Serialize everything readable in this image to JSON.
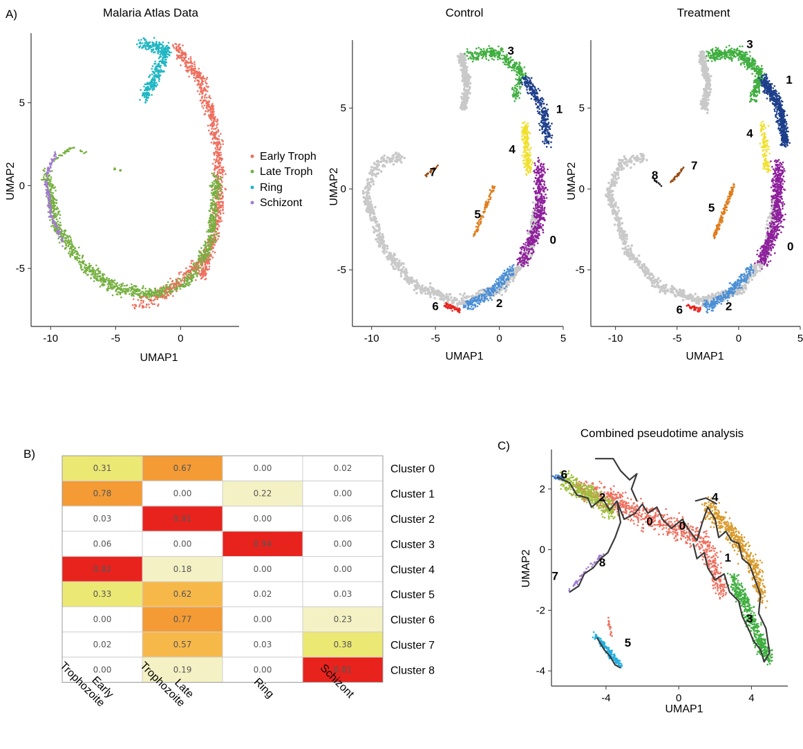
{
  "panel_labels": {
    "a": "A)",
    "b": "B)",
    "c": "C)"
  },
  "chart_data": [
    {
      "id": "atlas",
      "type": "scatter",
      "title": "Malaria Atlas Data",
      "xlabel": "UMAP1",
      "ylabel": "UMAP2",
      "xlim": [
        -11.5,
        4.5
      ],
      "ylim": [
        -8.5,
        9.2
      ],
      "xticks": [
        -10,
        -5,
        0
      ],
      "yticks": [
        -5,
        0,
        5
      ],
      "legend_position": "right",
      "series": [
        {
          "name": "Early Troph",
          "color": "#ef6f5e"
        },
        {
          "name": "Late Troph",
          "color": "#76b041"
        },
        {
          "name": "Ring",
          "color": "#1fb6c2"
        },
        {
          "name": "Schizont",
          "color": "#a27bd0"
        }
      ]
    },
    {
      "id": "control",
      "type": "scatter",
      "title": "Control",
      "xlabel": "UMAP1",
      "ylabel": "UMAP2",
      "xlim": [
        -11.5,
        5
      ],
      "ylim": [
        -8.5,
        9.2
      ],
      "xticks": [
        -10,
        -5,
        0,
        5
      ],
      "yticks": [
        -5,
        0,
        5
      ],
      "background_color": "#c9c9c9",
      "cluster_labels": [
        {
          "label": "0",
          "x": 4.2,
          "y": -3.4,
          "color": "#8e1f9c"
        },
        {
          "label": "1",
          "x": 4.7,
          "y": 4.7,
          "color": "#1d3e8a"
        },
        {
          "label": "2",
          "x": -0.0,
          "y": -7.3,
          "color": "#4a8fd6"
        },
        {
          "label": "3",
          "x": 0.9,
          "y": 8.3,
          "color": "#3fae3f"
        },
        {
          "label": "4",
          "x": 1.0,
          "y": 2.2,
          "color": "#f0e02c"
        },
        {
          "label": "5",
          "x": -1.7,
          "y": -1.8,
          "color": "#e07d1c"
        },
        {
          "label": "6",
          "x": -5.0,
          "y": -7.5,
          "color": "#e8231d"
        },
        {
          "label": "7",
          "x": -5.2,
          "y": 0.8,
          "color": "#9a4e16"
        }
      ]
    },
    {
      "id": "treatment",
      "type": "scatter",
      "title": "Treatment",
      "xlabel": "UMAP1",
      "ylabel": "UMAP2",
      "xlim": [
        -12,
        5
      ],
      "ylim": [
        -8.5,
        9.2
      ],
      "xticks": [
        -10,
        -5,
        0,
        5
      ],
      "yticks": [
        -5,
        0,
        5
      ],
      "background_color": "#c9c9c9",
      "cluster_labels": [
        {
          "label": "0",
          "x": 4.2,
          "y": -3.8,
          "color": "#8e1f9c"
        },
        {
          "label": "1",
          "x": 4.1,
          "y": 6.5,
          "color": "#1d3e8a"
        },
        {
          "label": "2",
          "x": -0.8,
          "y": -7.5,
          "color": "#4a8fd6"
        },
        {
          "label": "3",
          "x": 0.9,
          "y": 8.7,
          "color": "#3fae3f"
        },
        {
          "label": "4",
          "x": 0.9,
          "y": 3.2,
          "color": "#f0e02c"
        },
        {
          "label": "5",
          "x": -2.2,
          "y": -1.4,
          "color": "#e07d1c"
        },
        {
          "label": "6",
          "x": -4.8,
          "y": -7.7,
          "color": "#e8231d"
        },
        {
          "label": "7",
          "x": -3.6,
          "y": 1.2,
          "color": "#9a4e16"
        },
        {
          "label": "8",
          "x": -6.8,
          "y": 0.6,
          "color": "#111111"
        }
      ]
    },
    {
      "id": "cluster_heatmap",
      "type": "heatmap",
      "rows": [
        "Cluster 0",
        "Cluster 1",
        "Cluster 2",
        "Cluster 3",
        "Cluster 4",
        "Cluster 5",
        "Cluster 6",
        "Cluster 7",
        "Cluster 8"
      ],
      "columns": [
        "Early\nTrophozoite",
        "Late\nTrophozoite",
        "Ring",
        "Schizont"
      ],
      "values": [
        [
          0.31,
          0.67,
          0.0,
          0.02
        ],
        [
          0.78,
          0.0,
          0.22,
          0.0
        ],
        [
          0.03,
          0.91,
          0.0,
          0.06
        ],
        [
          0.06,
          0.0,
          0.94,
          0.0
        ],
        [
          0.82,
          0.18,
          0.0,
          0.0
        ],
        [
          0.33,
          0.62,
          0.02,
          0.03
        ],
        [
          0.0,
          0.77,
          0.0,
          0.23
        ],
        [
          0.02,
          0.57,
          0.03,
          0.38
        ],
        [
          0.0,
          0.19,
          0.0,
          0.81
        ]
      ],
      "value_labels": [
        [
          "0.31",
          "0.67",
          "0.00",
          "0.02"
        ],
        [
          "0.78",
          "0.00",
          "0.22",
          "0.00"
        ],
        [
          "0.03",
          "0.91",
          "0.00",
          "0.06"
        ],
        [
          "0.06",
          "0.00",
          "0.94",
          "0.00"
        ],
        [
          "0.82",
          "0.18",
          "0.00",
          "0.00"
        ],
        [
          "0.33",
          "0.62",
          "0.02",
          "0.03"
        ],
        [
          "0.00",
          "0.77",
          "0.00",
          "0.23"
        ],
        [
          "0.02",
          "0.57",
          "0.03",
          "0.38"
        ],
        [
          "0.00",
          "0.19",
          "0.00",
          "0.81"
        ]
      ],
      "color_scale": {
        "low": "#ffffff",
        "light": "#f4f2c4",
        "mid": "#ece874",
        "orange_light": "#f7b84a",
        "orange": "#f49b35",
        "high": "#e8231d"
      }
    },
    {
      "id": "pseudotime",
      "type": "scatter",
      "title": "Combined pseudotime analysis",
      "xlabel": "UMAP1",
      "ylabel": "UMAP2",
      "xlim": [
        -7,
        6
      ],
      "ylim": [
        -4.5,
        3.3
      ],
      "xticks": [
        -4,
        0,
        4
      ],
      "yticks": [
        -4,
        -2,
        0,
        2
      ],
      "trajectory_color": "#3a3a3a",
      "cluster_labels": [
        {
          "label": "6",
          "x": -6.3,
          "y": 2.35
        },
        {
          "label": "2",
          "x": -4.2,
          "y": 1.6
        },
        {
          "label": "0",
          "x": -1.6,
          "y": 0.8
        },
        {
          "label": "0",
          "x": 0.2,
          "y": 0.65
        },
        {
          "label": "4",
          "x": 2.0,
          "y": 1.6
        },
        {
          "label": "1",
          "x": 2.7,
          "y": -0.4
        },
        {
          "label": "8",
          "x": -4.2,
          "y": -0.55
        },
        {
          "label": "7",
          "x": -6.8,
          "y": -1.0
        },
        {
          "label": "3",
          "x": 3.9,
          "y": -2.4
        },
        {
          "label": "5",
          "x": -2.8,
          "y": -3.2
        }
      ],
      "populations": [
        {
          "color": "#ef6f5e"
        },
        {
          "color": "#9fbf3b"
        },
        {
          "color": "#d99a2b"
        },
        {
          "color": "#3fae3f"
        },
        {
          "color": "#22aee0"
        },
        {
          "color": "#a27bd0"
        },
        {
          "color": "#3b78c8"
        }
      ]
    }
  ]
}
